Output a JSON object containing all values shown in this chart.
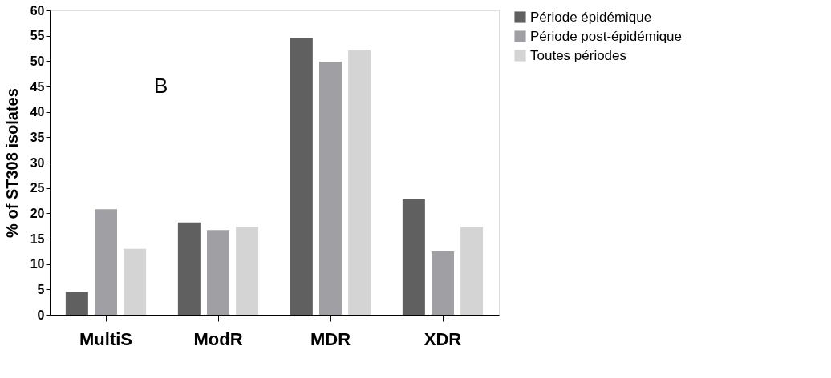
{
  "chart_data": {
    "type": "bar",
    "ylabel": "% of ST308 isolates",
    "annotations": [
      "B"
    ],
    "categories": [
      "MultiS",
      "ModR",
      "MDR",
      "XDR"
    ],
    "series": [
      {
        "name": "Période épidémique",
        "color": "#606060",
        "values": [
          4.5,
          18.2,
          54.5,
          22.8
        ]
      },
      {
        "name": "Période post-épidémique",
        "color": "#a0a0a4",
        "values": [
          20.8,
          16.7,
          49.9,
          12.5
        ]
      },
      {
        "name": "Toutes périodes",
        "color": "#d4d4d4",
        "values": [
          13.0,
          17.3,
          52.1,
          17.3
        ]
      }
    ],
    "ylim": [
      0,
      60
    ],
    "yticks": [
      0,
      5,
      10,
      15,
      20,
      25,
      30,
      35,
      40,
      45,
      50,
      55,
      60
    ],
    "grid": false,
    "legend": "right"
  }
}
